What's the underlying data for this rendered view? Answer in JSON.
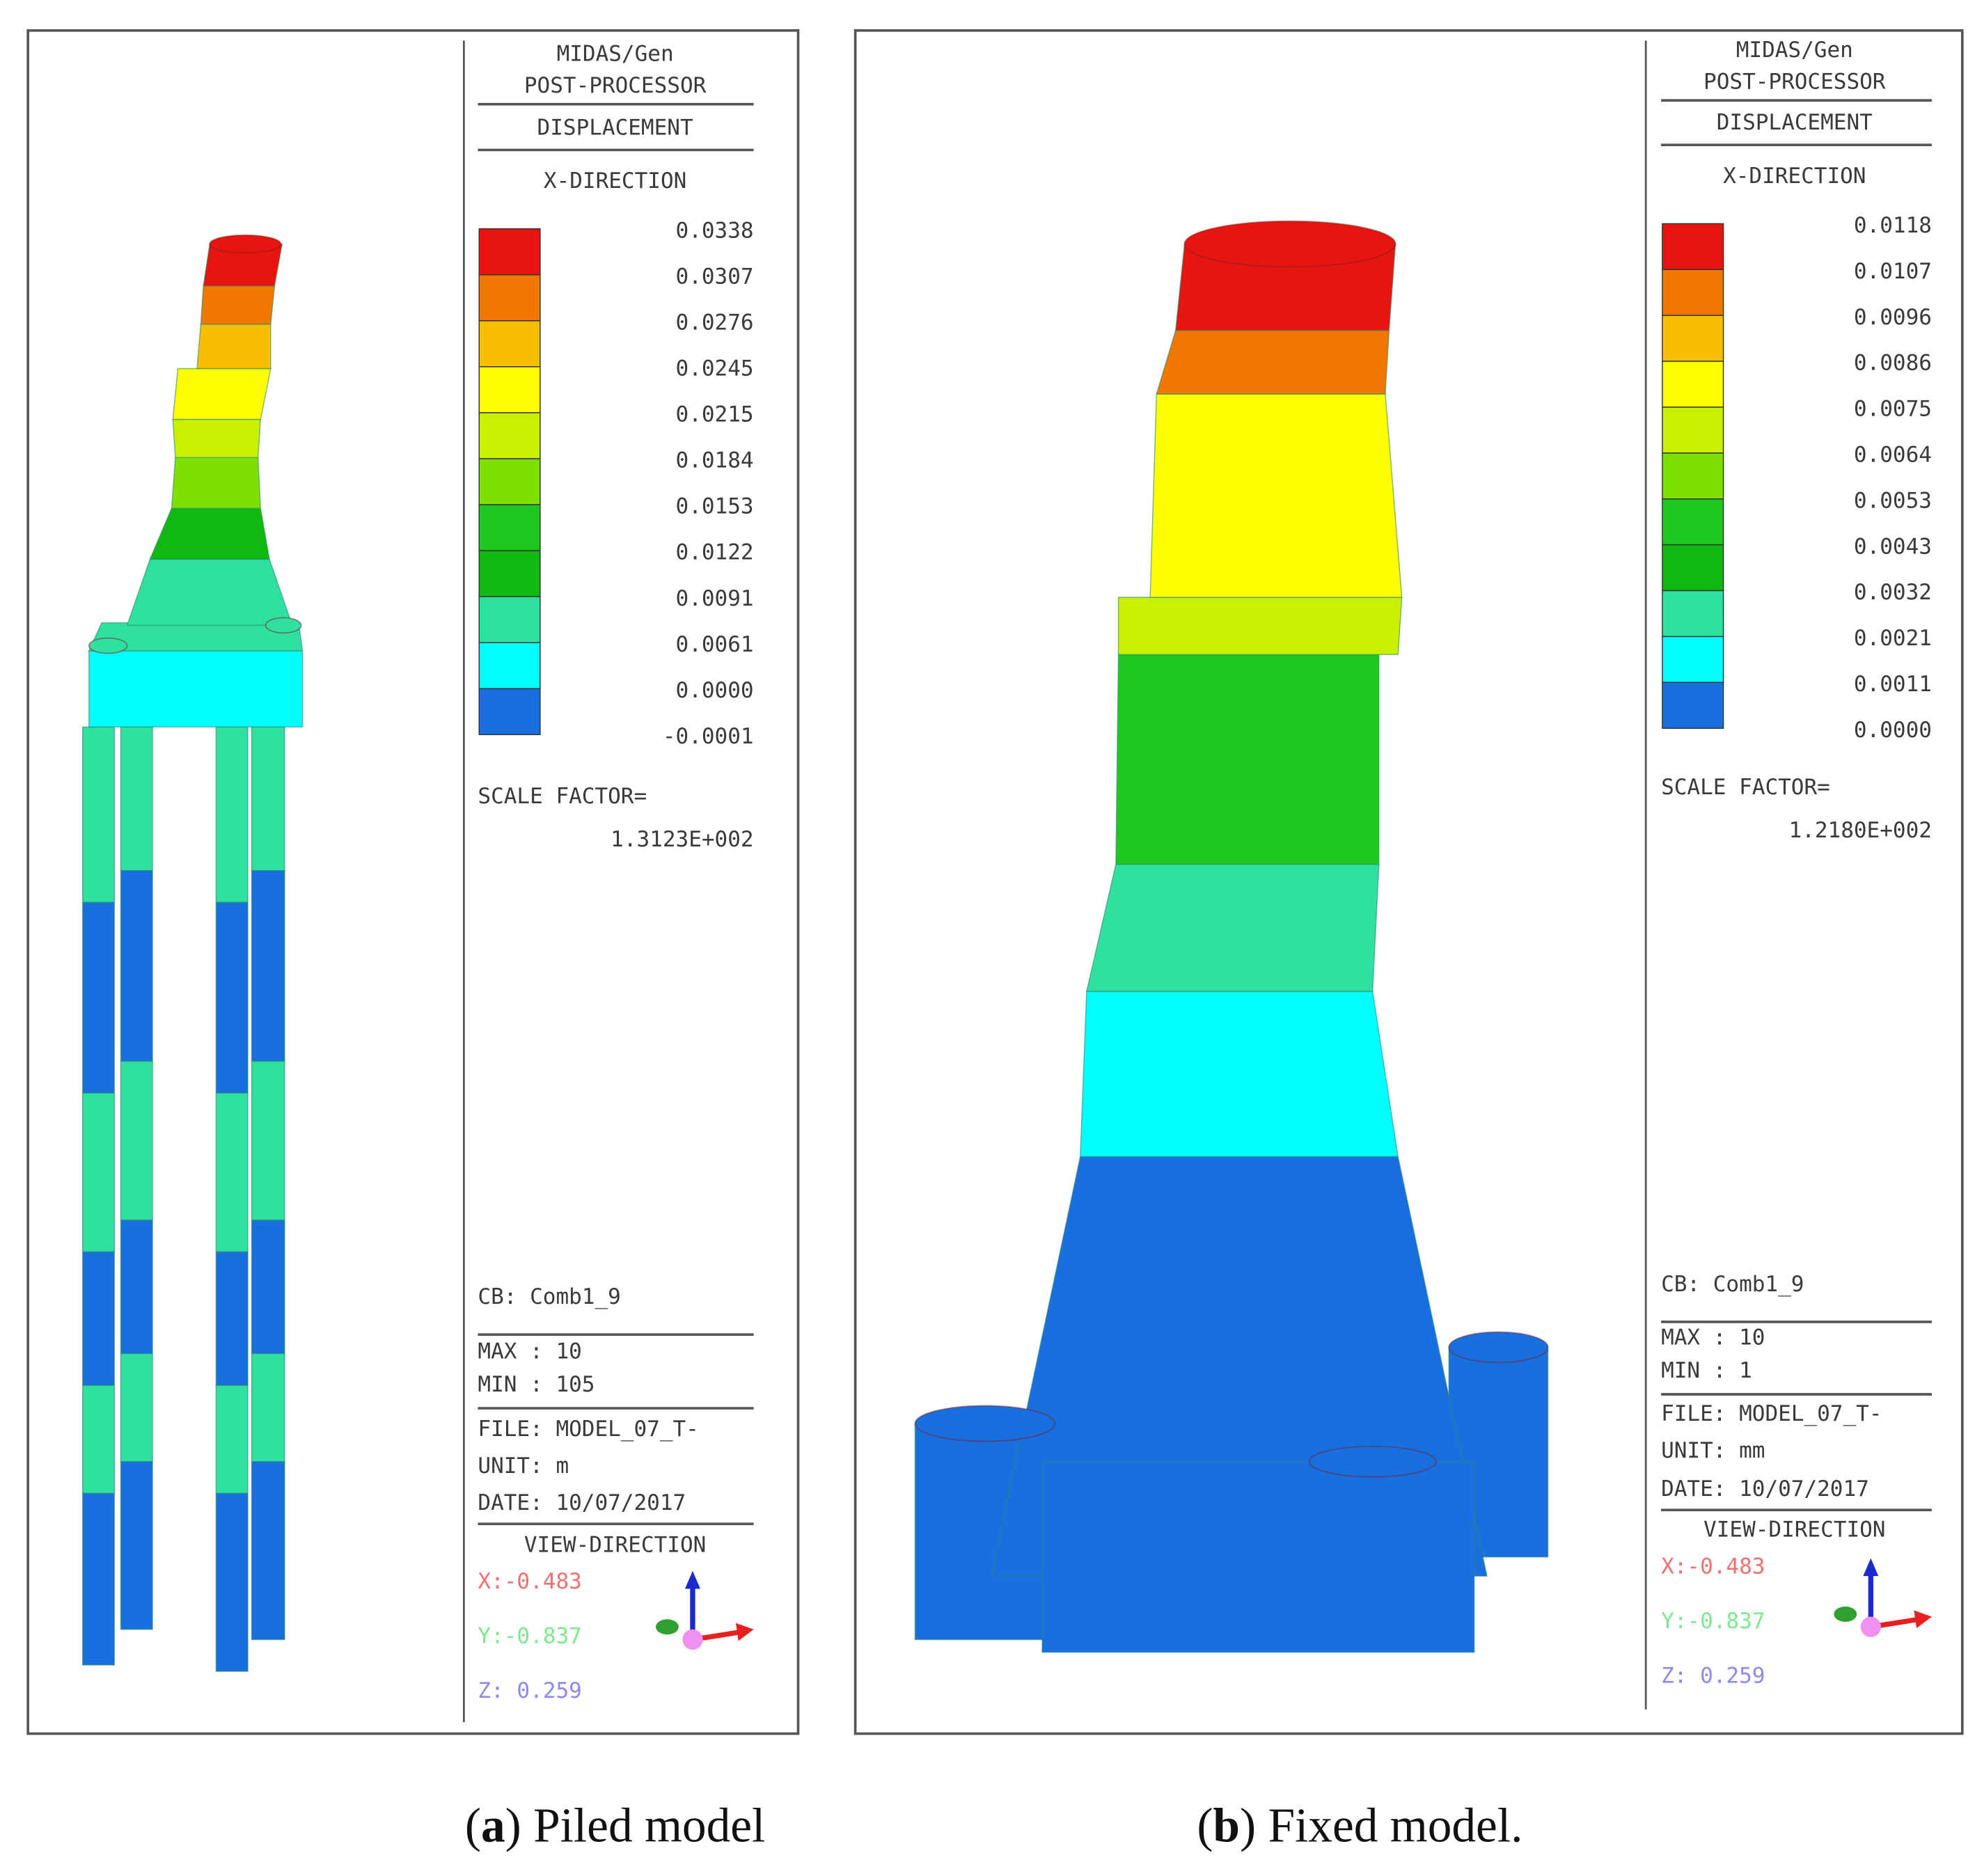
{
  "panels": [
    {
      "caption": {
        "open": "(",
        "label": "a",
        "text": ") Piled model"
      },
      "legend": {
        "program": "MIDAS/Gen",
        "processor": "POST-PROCESSOR",
        "result": "DISPLACEMENT",
        "direction": "X-DIRECTION",
        "colors": [
          "#e8140f",
          "#f07800",
          "#f8be00",
          "#ffff00",
          "#c8f000",
          "#7ee000",
          "#1ec81e",
          "#10b810",
          "#30e0a0",
          "#00ffff",
          "#1a6fe0"
        ],
        "values": [
          "0.0338",
          "0.0307",
          "0.0276",
          "0.0245",
          "0.0215",
          "0.0184",
          "0.0153",
          "0.0122",
          "0.0091",
          "0.0061",
          "0.0000",
          "-0.0001"
        ],
        "scale_factor_label": "SCALE FACTOR=",
        "scale_factor": "1.3123E+002",
        "cb": "CB: Comb1_9",
        "max": "MAX : 10",
        "min": "MIN : 105",
        "file": "FILE: MODEL_07_T-",
        "unit": "UNIT: m",
        "date": "DATE: 10/07/2017",
        "view_direction": "VIEW-DIRECTION",
        "view_x": "X:-0.483",
        "view_y": "Y:-0.837",
        "view_z": "Z: 0.259"
      }
    },
    {
      "caption": {
        "open": "(",
        "label": "b",
        "text": ") Fixed model."
      },
      "legend": {
        "program": "MIDAS/Gen",
        "processor": "POST-PROCESSOR",
        "result": "DISPLACEMENT",
        "direction": "X-DIRECTION",
        "colors": [
          "#e8140f",
          "#f07800",
          "#f8be00",
          "#ffff00",
          "#c8f000",
          "#7ee000",
          "#1ec81e",
          "#10b810",
          "#30e0a0",
          "#00ffff",
          "#1a6fe0"
        ],
        "values": [
          "0.0118",
          "0.0107",
          "0.0096",
          "0.0086",
          "0.0075",
          "0.0064",
          "0.0053",
          "0.0043",
          "0.0032",
          "0.0021",
          "0.0011",
          "0.0000"
        ],
        "scale_factor_label": "SCALE FACTOR=",
        "scale_factor": "1.2180E+002",
        "cb": "CB: Comb1_9",
        "max": "MAX : 10",
        "min": "MIN : 1",
        "file": "FILE: MODEL_07_T-",
        "unit": "UNIT: mm",
        "date": "DATE: 10/07/2017",
        "view_direction": "VIEW-DIRECTION",
        "view_x": "X:-0.483",
        "view_y": "Y:-0.837",
        "view_z": "Z: 0.259"
      }
    }
  ]
}
